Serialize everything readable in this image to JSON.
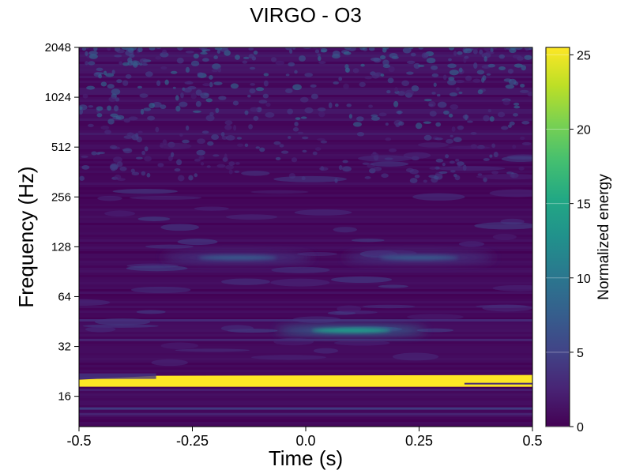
{
  "chart_data": {
    "type": "heatmap",
    "title": "VIRGO - O3",
    "xlabel": "Time (s)",
    "ylabel": "Frequency (Hz)",
    "xlim": [
      -0.5,
      0.5
    ],
    "ylim": [
      10,
      2048
    ],
    "yscale": "log2",
    "x_ticks": [
      -0.5,
      -0.25,
      0.0,
      0.25,
      0.5
    ],
    "x_tick_labels": [
      "-0.5",
      "-0.25",
      "0.0",
      "0.25",
      "0.5"
    ],
    "y_ticks": [
      16,
      32,
      64,
      128,
      256,
      512,
      1024,
      2048
    ],
    "y_tick_labels": [
      "16",
      "32",
      "64",
      "128",
      "256",
      "512",
      "1024",
      "2048"
    ],
    "colorbar": {
      "label": "Normalized energy",
      "range": [
        0,
        25.5
      ],
      "ticks": [
        0,
        5,
        10,
        15,
        20,
        25
      ],
      "tick_labels": [
        "0",
        "5",
        "10",
        "15",
        "20",
        "25"
      ],
      "colormap": "viridis"
    },
    "features": [
      {
        "kind": "band",
        "freq_hz": 19.5,
        "x_start": -0.5,
        "x_end": 0.5,
        "energy": 25.5
      },
      {
        "kind": "blob",
        "t": 0.1,
        "freq_hz": 40,
        "energy": 14
      },
      {
        "kind": "blob",
        "t": -0.15,
        "freq_hz": 110,
        "energy": 7
      },
      {
        "kind": "blob",
        "t": 0.25,
        "freq_hz": 110,
        "energy": 7
      }
    ],
    "grid": false
  },
  "colors": {
    "viridis_low": "#440154",
    "viridis_high": "#fde725"
  }
}
